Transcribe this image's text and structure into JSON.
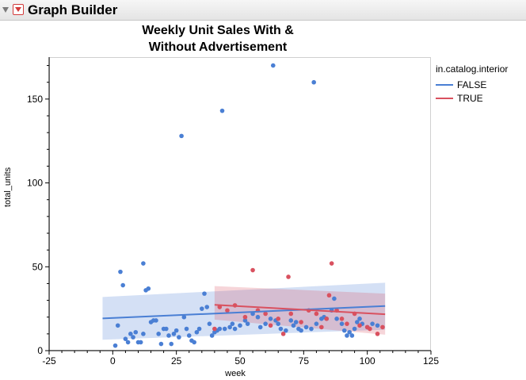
{
  "header": {
    "title": "Graph Builder"
  },
  "legend": {
    "title": "in.catalog.interior",
    "items": [
      {
        "label": "FALSE",
        "color": "#4a7fd4"
      },
      {
        "label": "TRUE",
        "color": "#d9515f"
      }
    ]
  },
  "chart_data": {
    "type": "scatter",
    "title": "Weekly Unit Sales With & Without Advertisement",
    "title_lines": [
      "Weekly Unit Sales With &",
      "Without Advertisement"
    ],
    "xlabel": "week",
    "ylabel": "total_units",
    "xlim": [
      -25,
      125
    ],
    "ylim": [
      0,
      175
    ],
    "xticks": [
      -25,
      0,
      25,
      50,
      75,
      100,
      125
    ],
    "yticks": [
      0,
      50,
      100,
      150
    ],
    "grid": false,
    "legend_position": "right",
    "series": [
      {
        "name": "FALSE",
        "color": "#4a7fd4",
        "points": [
          [
            1,
            3
          ],
          [
            2,
            15
          ],
          [
            3,
            47
          ],
          [
            4,
            39
          ],
          [
            5,
            7
          ],
          [
            6,
            5
          ],
          [
            7,
            10
          ],
          [
            8,
            8
          ],
          [
            9,
            11
          ],
          [
            10,
            5
          ],
          [
            11,
            5
          ],
          [
            12,
            10
          ],
          [
            12,
            52
          ],
          [
            13,
            36
          ],
          [
            14,
            37
          ],
          [
            15,
            17
          ],
          [
            16,
            18
          ],
          [
            17,
            18
          ],
          [
            18,
            10
          ],
          [
            19,
            4
          ],
          [
            20,
            13
          ],
          [
            21,
            13
          ],
          [
            22,
            9
          ],
          [
            23,
            4
          ],
          [
            24,
            10
          ],
          [
            25,
            12
          ],
          [
            26,
            8
          ],
          [
            27,
            128
          ],
          [
            28,
            20
          ],
          [
            29,
            13
          ],
          [
            30,
            9
          ],
          [
            31,
            6
          ],
          [
            32,
            5
          ],
          [
            33,
            11
          ],
          [
            34,
            13
          ],
          [
            35,
            25
          ],
          [
            36,
            34
          ],
          [
            37,
            26
          ],
          [
            38,
            16
          ],
          [
            39,
            9
          ],
          [
            40,
            11
          ],
          [
            41,
            12
          ],
          [
            42,
            13
          ],
          [
            43,
            143
          ],
          [
            44,
            13
          ],
          [
            46,
            14
          ],
          [
            47,
            16
          ],
          [
            48,
            13
          ],
          [
            50,
            15
          ],
          [
            52,
            18
          ],
          [
            53,
            16
          ],
          [
            55,
            22
          ],
          [
            57,
            20
          ],
          [
            58,
            14
          ],
          [
            60,
            16
          ],
          [
            62,
            19
          ],
          [
            63,
            170
          ],
          [
            64,
            18
          ],
          [
            65,
            16
          ],
          [
            66,
            13
          ],
          [
            68,
            12
          ],
          [
            70,
            18
          ],
          [
            71,
            15
          ],
          [
            72,
            17
          ],
          [
            73,
            13
          ],
          [
            74,
            12
          ],
          [
            76,
            14
          ],
          [
            78,
            13
          ],
          [
            79,
            160
          ],
          [
            80,
            16
          ],
          [
            82,
            19
          ],
          [
            83,
            20
          ],
          [
            84,
            19
          ],
          [
            86,
            24
          ],
          [
            87,
            31
          ],
          [
            88,
            19
          ],
          [
            90,
            16
          ],
          [
            91,
            12
          ],
          [
            92,
            9
          ],
          [
            93,
            11
          ],
          [
            94,
            9
          ],
          [
            95,
            13
          ],
          [
            96,
            17
          ],
          [
            97,
            19
          ],
          [
            98,
            16
          ],
          [
            100,
            14
          ],
          [
            102,
            16
          ],
          [
            104,
            15
          ]
        ]
      },
      {
        "name": "TRUE",
        "color": "#d9515f",
        "points": [
          [
            40,
            13
          ],
          [
            42,
            26
          ],
          [
            45,
            24
          ],
          [
            48,
            27
          ],
          [
            52,
            20
          ],
          [
            55,
            48
          ],
          [
            57,
            24
          ],
          [
            60,
            22
          ],
          [
            62,
            15
          ],
          [
            65,
            19
          ],
          [
            67,
            10
          ],
          [
            69,
            44
          ],
          [
            70,
            22
          ],
          [
            74,
            17
          ],
          [
            77,
            24
          ],
          [
            80,
            22
          ],
          [
            82,
            14
          ],
          [
            84,
            19
          ],
          [
            85,
            33
          ],
          [
            86,
            52
          ],
          [
            88,
            24
          ],
          [
            90,
            19
          ],
          [
            92,
            16
          ],
          [
            95,
            22
          ],
          [
            97,
            15
          ],
          [
            100,
            14
          ],
          [
            101,
            13
          ],
          [
            104,
            10
          ],
          [
            106,
            14
          ]
        ]
      }
    ],
    "fits": [
      {
        "series": "FALSE",
        "color": "#4a7fd4",
        "x": [
          -4,
          107
        ],
        "y": [
          19.2,
          26.6
        ],
        "band_lower": [
          6.5,
          12.5
        ],
        "band_upper": [
          32,
          40.5
        ]
      },
      {
        "series": "TRUE",
        "color": "#d9515f",
        "x": [
          40,
          107
        ],
        "y": [
          27.3,
          21.7
        ],
        "band_lower": [
          18.5,
          9.5
        ],
        "band_upper": [
          38.5,
          34
        ]
      }
    ]
  }
}
